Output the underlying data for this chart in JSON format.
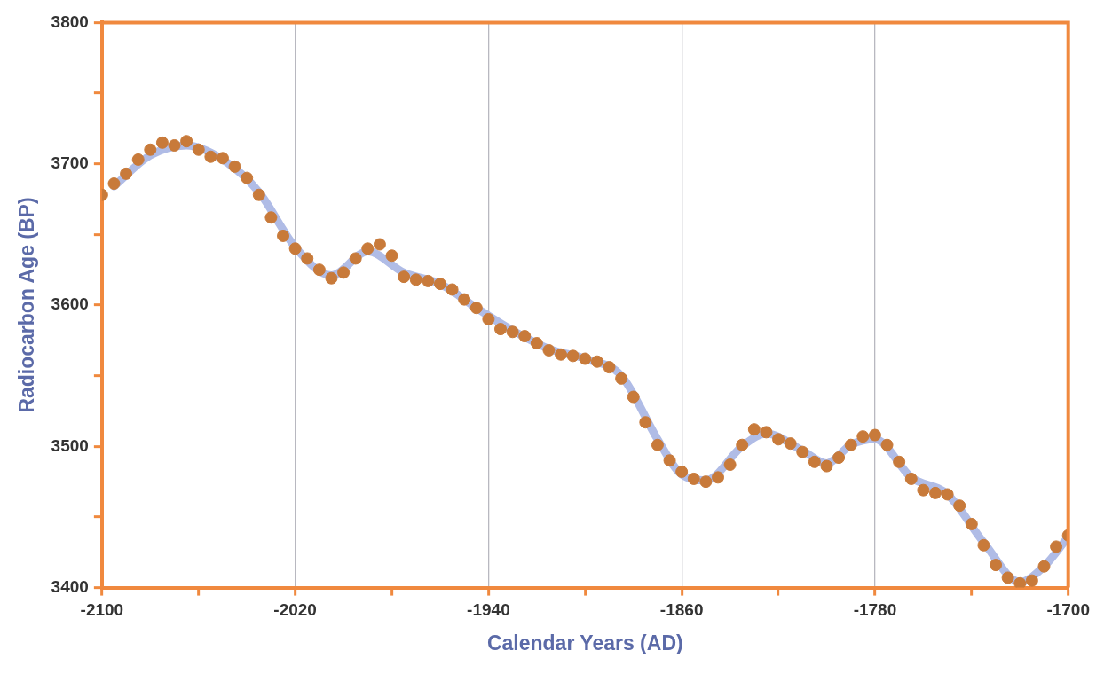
{
  "chart_data": {
    "type": "scatter",
    "xlabel": "Calendar Years (AD)",
    "ylabel": "Radiocarbon Age (BP)",
    "xlim": [
      -2100,
      -1700
    ],
    "xticks": [
      -2100,
      {
        "value": -2060,
        "label": null
      },
      -2020,
      {
        "value": -1980,
        "label": null
      },
      -1940,
      {
        "value": -1900,
        "label": null
      },
      -1860,
      {
        "value": -1820,
        "label": null
      },
      -1780,
      {
        "value": -1740,
        "label": null
      },
      -1700
    ],
    "ylim": [
      3400,
      3800
    ],
    "yticks": [
      3400,
      {
        "value": 3450,
        "label": null
      },
      3500,
      {
        "value": 3550,
        "label": null
      },
      3600,
      {
        "value": 3650,
        "label": null
      },
      3700,
      {
        "value": 3750,
        "label": null
      },
      3800
    ],
    "grid": "x",
    "legend": false,
    "series": [
      {
        "type": "line",
        "color": "#b0bce6",
        "line_style": "solid",
        "marker": "none",
        "x": [
          -2095,
          -2080,
          -2065,
          -2050,
          -2035,
          -2020,
          -2005,
          -1990,
          -1975,
          -1960,
          -1945,
          -1930,
          -1915,
          -1900,
          -1885,
          -1870,
          -1860,
          -1850,
          -1835,
          -1825,
          -1810,
          -1800,
          -1790,
          -1780,
          -1765,
          -1750,
          -1735,
          -1720,
          -1710,
          -1700
        ],
        "values": [
          3684,
          3706,
          3713,
          3703,
          3680,
          3641,
          3621,
          3638,
          3623,
          3615,
          3598,
          3582,
          3569,
          3562,
          3550,
          3505,
          3480,
          3476,
          3500,
          3509,
          3497,
          3488,
          3501,
          3505,
          3478,
          3466,
          3432,
          3404,
          3415,
          3436
        ]
      },
      {
        "color": "#c87a3a",
        "marker": "circle",
        "x": [
          -2100,
          -2095,
          -2090,
          -2085,
          -2080,
          -2075,
          -2070,
          -2065,
          -2060,
          -2055,
          -2050,
          -2045,
          -2040,
          -2035,
          -2030,
          -2025,
          -2020,
          -2015,
          -2010,
          -2005,
          -2000,
          -1995,
          -1990,
          -1985,
          -1980,
          -1975,
          -1970,
          -1965,
          -1960,
          -1955,
          -1950,
          -1945,
          -1940,
          -1935,
          -1930,
          -1925,
          -1920,
          -1915,
          -1910,
          -1905,
          -1900,
          -1895,
          -1890,
          -1885,
          -1880,
          -1875,
          -1870,
          -1865,
          -1860,
          -1855,
          -1850,
          -1845,
          -1840,
          -1835,
          -1830,
          -1825,
          -1820,
          -1815,
          -1810,
          -1805,
          -1800,
          -1795,
          -1790,
          -1785,
          -1780,
          -1775,
          -1770,
          -1765,
          -1760,
          -1755,
          -1750,
          -1745,
          -1740,
          -1735,
          -1730,
          -1725,
          -1720,
          -1715,
          -1710,
          -1705,
          -1700
        ],
        "values": [
          3678,
          3686,
          3693,
          3703,
          3710,
          3715,
          3713,
          3716,
          3710,
          3705,
          3704,
          3698,
          3690,
          3678,
          3662,
          3649,
          3640,
          3633,
          3625,
          3619,
          3623,
          3633,
          3640,
          3643,
          3635,
          3620,
          3618,
          3617,
          3615,
          3611,
          3604,
          3598,
          3590,
          3583,
          3581,
          3578,
          3573,
          3568,
          3565,
          3564,
          3562,
          3560,
          3556,
          3548,
          3535,
          3517,
          3501,
          3490,
          3482,
          3477,
          3475,
          3478,
          3487,
          3501,
          3512,
          3510,
          3505,
          3502,
          3496,
          3489,
          3486,
          3492,
          3501,
          3507,
          3508,
          3501,
          3489,
          3477,
          3469,
          3467,
          3466,
          3458,
          3445,
          3430,
          3416,
          3407,
          3403,
          3405,
          3415,
          3429,
          3437
        ]
      }
    ]
  }
}
